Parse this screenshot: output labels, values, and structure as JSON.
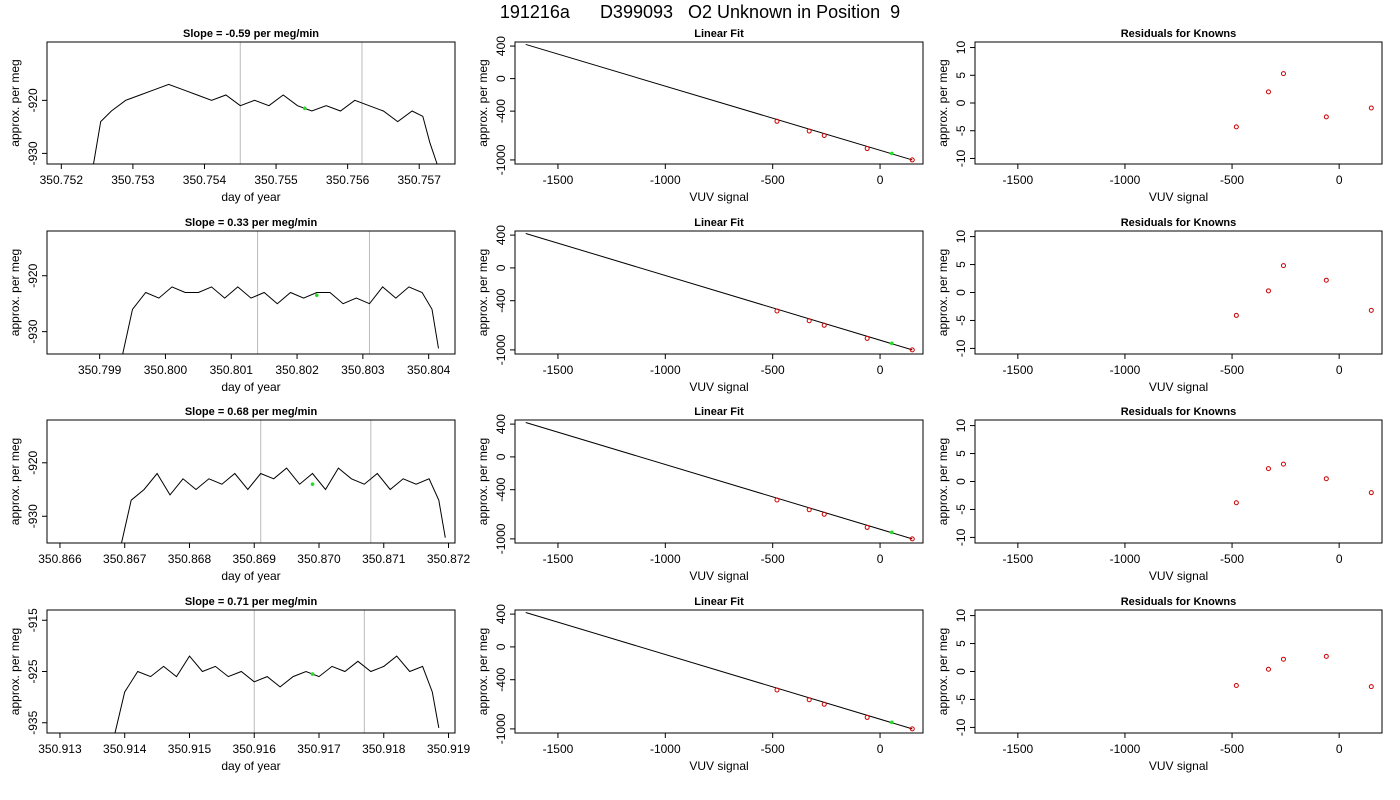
{
  "title": {
    "run": "191216a",
    "sample": "D399093",
    "description": "O2 Unknown in Position  9"
  },
  "colors": {
    "trace": "#000000",
    "knowns": "#cc0000",
    "unknown": "#22dd22",
    "window_lines": "#bbbbbb"
  },
  "chart_data": [
    {
      "type": "line",
      "row": 1,
      "kind": "time-series",
      "title": "Slope =  -0.59  per meg/min",
      "xlabel": "day of year",
      "ylabel": "approx. per meg",
      "xlim": [
        350.7518,
        350.7575
      ],
      "ylim": [
        -932,
        -909
      ],
      "xticks": [
        350.752,
        350.753,
        350.754,
        350.755,
        350.756,
        350.757
      ],
      "xtick_labels": [
        "350.752",
        "350.753",
        "350.754",
        "350.755",
        "350.756",
        "350.757"
      ],
      "yticks": [
        -930,
        -920
      ],
      "ytick_labels": [
        "-930",
        "-920"
      ],
      "window_start": 350.7545,
      "window_end": 350.7562,
      "unknown_point": {
        "x": 350.7554,
        "y": -921.5
      },
      "x": [
        350.75245,
        350.75255,
        350.7527,
        350.7529,
        350.7531,
        350.7533,
        350.7535,
        350.7537,
        350.7539,
        350.7541,
        350.7543,
        350.7545,
        350.7547,
        350.7549,
        350.7551,
        350.7553,
        350.7555,
        350.7557,
        350.7559,
        350.7561,
        350.7563,
        350.7565,
        350.7567,
        350.7569,
        350.75705,
        350.75715,
        350.75725
      ],
      "y": [
        -932,
        -924,
        -922,
        -920,
        -919,
        -918,
        -917,
        -918,
        -919,
        -920,
        -919,
        -921,
        -920,
        -921,
        -919,
        -921,
        -922,
        -921,
        -922,
        -920,
        -921,
        -922,
        -924,
        -922,
        -923,
        -928,
        -932
      ]
    },
    {
      "type": "scatter",
      "row": 1,
      "kind": "linear-fit",
      "title": "Linear Fit",
      "xlabel": "VUV signal",
      "ylabel": "approx. per meg",
      "xlim": [
        -1700,
        200
      ],
      "ylim": [
        -1050,
        450
      ],
      "xticks": [
        -1500,
        -1000,
        -500,
        0
      ],
      "xtick_labels": [
        "-1500",
        "-1000",
        "-500",
        "0"
      ],
      "yticks": [
        400,
        0,
        -400,
        -1000
      ],
      "ytick_labels": [
        "400",
        "0",
        "-400",
        "-1000"
      ],
      "fit_line": {
        "x": [
          -1650,
          150
        ],
        "y": [
          420,
          -1000
        ]
      },
      "knowns": {
        "x": [
          -480,
          -330,
          -260,
          -60,
          150
        ],
        "y": [
          -525,
          -645,
          -700,
          -860,
          -1000
        ]
      },
      "unknown": {
        "x": 55,
        "y": -920
      }
    },
    {
      "type": "scatter",
      "row": 1,
      "kind": "residuals",
      "title": "Residuals for Knowns",
      "xlabel": "VUV signal",
      "ylabel": "approx. per meg",
      "xlim": [
        -1700,
        200
      ],
      "ylim": [
        -11,
        11
      ],
      "xticks": [
        -1500,
        -1000,
        -500,
        0
      ],
      "xtick_labels": [
        "-1500",
        "-1000",
        "-500",
        "0"
      ],
      "yticks": [
        10,
        5,
        0,
        -5,
        -10
      ],
      "ytick_labels": [
        "10",
        "5",
        "0",
        "-5",
        "-10"
      ],
      "knowns": {
        "x": [
          -480,
          -330,
          -260,
          -60,
          150
        ],
        "y": [
          -4.3,
          2.0,
          5.3,
          -2.5,
          -0.9
        ]
      }
    },
    {
      "type": "line",
      "row": 2,
      "kind": "time-series",
      "title": "Slope =  0.33  per meg/min",
      "xlabel": "day of year",
      "ylabel": "approx. per meg",
      "xlim": [
        350.7982,
        350.8044
      ],
      "ylim": [
        -934,
        -912
      ],
      "xticks": [
        350.799,
        350.8,
        350.801,
        350.802,
        350.803,
        350.804
      ],
      "xtick_labels": [
        "350.799",
        "350.800",
        "350.801",
        "350.802",
        "350.803",
        "350.804"
      ],
      "yticks": [
        -930,
        -920
      ],
      "ytick_labels": [
        "-930",
        "-920"
      ],
      "window_start": 350.8014,
      "window_end": 350.8031,
      "unknown_point": {
        "x": 350.8023,
        "y": -923.5
      },
      "x": [
        350.79935,
        350.7995,
        350.7997,
        350.7999,
        350.8001,
        350.8003,
        350.8005,
        350.8007,
        350.8009,
        350.8011,
        350.8013,
        350.8015,
        350.8017,
        350.8019,
        350.8021,
        350.8023,
        350.8025,
        350.8027,
        350.8029,
        350.8031,
        350.8033,
        350.8035,
        350.8037,
        350.8039,
        350.80405,
        350.80415
      ],
      "y": [
        -934,
        -926,
        -923,
        -924,
        -922,
        -923,
        -923,
        -922,
        -924,
        -922,
        -924,
        -923,
        -925,
        -923,
        -924,
        -923,
        -923,
        -925,
        -924,
        -925,
        -922,
        -924,
        -922,
        -923,
        -926,
        -933
      ]
    },
    {
      "type": "scatter",
      "row": 2,
      "kind": "linear-fit",
      "title": "Linear Fit",
      "xlabel": "VUV signal",
      "ylabel": "approx. per meg",
      "xlim": [
        -1700,
        200
      ],
      "ylim": [
        -1050,
        450
      ],
      "xticks": [
        -1500,
        -1000,
        -500,
        0
      ],
      "xtick_labels": [
        "-1500",
        "-1000",
        "-500",
        "0"
      ],
      "yticks": [
        400,
        0,
        -400,
        -1000
      ],
      "ytick_labels": [
        "400",
        "0",
        "-400",
        "-1000"
      ],
      "fit_line": {
        "x": [
          -1650,
          150
        ],
        "y": [
          420,
          -1000
        ]
      },
      "knowns": {
        "x": [
          -480,
          -330,
          -260,
          -60,
          150
        ],
        "y": [
          -525,
          -645,
          -700,
          -860,
          -1000
        ]
      },
      "unknown": {
        "x": 55,
        "y": -920
      }
    },
    {
      "type": "scatter",
      "row": 2,
      "kind": "residuals",
      "title": "Residuals for Knowns",
      "xlabel": "VUV signal",
      "ylabel": "approx. per meg",
      "xlim": [
        -1700,
        200
      ],
      "ylim": [
        -11,
        11
      ],
      "xticks": [
        -1500,
        -1000,
        -500,
        0
      ],
      "xtick_labels": [
        "-1500",
        "-1000",
        "-500",
        "0"
      ],
      "yticks": [
        10,
        5,
        0,
        -5,
        -10
      ],
      "ytick_labels": [
        "10",
        "5",
        "0",
        "-5",
        "-10"
      ],
      "knowns": {
        "x": [
          -480,
          -330,
          -260,
          -60,
          150
        ],
        "y": [
          -4.1,
          0.3,
          4.8,
          2.2,
          -3.2
        ]
      }
    },
    {
      "type": "line",
      "row": 3,
      "kind": "time-series",
      "title": "Slope =  0.68  per meg/min",
      "xlabel": "day of year",
      "ylabel": "approx. per meg",
      "xlim": [
        350.8658,
        350.8721
      ],
      "ylim": [
        -935,
        -912
      ],
      "xticks": [
        350.866,
        350.867,
        350.868,
        350.869,
        350.87,
        350.871,
        350.872
      ],
      "xtick_labels": [
        "350.866",
        "350.867",
        "350.868",
        "350.869",
        "350.870",
        "350.871",
        "350.872"
      ],
      "yticks": [
        -930,
        -920
      ],
      "ytick_labels": [
        "-930",
        "-920"
      ],
      "window_start": 350.8691,
      "window_end": 350.8708,
      "unknown_point": {
        "x": 350.8699,
        "y": -924
      },
      "x": [
        350.86695,
        350.8671,
        350.8673,
        350.8675,
        350.8677,
        350.8679,
        350.8681,
        350.8683,
        350.8685,
        350.8687,
        350.8689,
        350.8691,
        350.8693,
        350.8695,
        350.8697,
        350.8699,
        350.8701,
        350.8703,
        350.8705,
        350.8707,
        350.8709,
        350.8711,
        350.8713,
        350.8715,
        350.8717,
        350.87185,
        350.87195
      ],
      "y": [
        -935,
        -927,
        -925,
        -922,
        -926,
        -923,
        -925,
        -923,
        -924,
        -922,
        -925,
        -922,
        -923,
        -921,
        -924,
        -922,
        -925,
        -921,
        -923,
        -924,
        -922,
        -925,
        -923,
        -924,
        -923,
        -927,
        -934
      ]
    },
    {
      "type": "scatter",
      "row": 3,
      "kind": "linear-fit",
      "title": "Linear Fit",
      "xlabel": "VUV signal",
      "ylabel": "approx. per meg",
      "xlim": [
        -1700,
        200
      ],
      "ylim": [
        -1050,
        450
      ],
      "xticks": [
        -1500,
        -1000,
        -500,
        0
      ],
      "xtick_labels": [
        "-1500",
        "-1000",
        "-500",
        "0"
      ],
      "yticks": [
        400,
        0,
        -400,
        -1000
      ],
      "ytick_labels": [
        "400",
        "0",
        "-400",
        "-1000"
      ],
      "fit_line": {
        "x": [
          -1650,
          150
        ],
        "y": [
          420,
          -1000
        ]
      },
      "knowns": {
        "x": [
          -480,
          -330,
          -260,
          -60,
          150
        ],
        "y": [
          -525,
          -645,
          -700,
          -860,
          -1000
        ]
      },
      "unknown": {
        "x": 55,
        "y": -920
      }
    },
    {
      "type": "scatter",
      "row": 3,
      "kind": "residuals",
      "title": "Residuals for Knowns",
      "xlabel": "VUV signal",
      "ylabel": "approx. per meg",
      "xlim": [
        -1700,
        200
      ],
      "ylim": [
        -11,
        11
      ],
      "xticks": [
        -1500,
        -1000,
        -500,
        0
      ],
      "xtick_labels": [
        "-1500",
        "-1000",
        "-500",
        "0"
      ],
      "yticks": [
        10,
        5,
        0,
        -5,
        -10
      ],
      "ytick_labels": [
        "10",
        "5",
        "0",
        "-5",
        "-10"
      ],
      "knowns": {
        "x": [
          -480,
          -330,
          -260,
          -60,
          150
        ],
        "y": [
          -3.8,
          2.3,
          3.1,
          0.5,
          -2.0
        ]
      }
    },
    {
      "type": "line",
      "row": 4,
      "kind": "time-series",
      "title": "Slope =  0.71  per meg/min",
      "xlabel": "day of year",
      "ylabel": "approx. per meg",
      "xlim": [
        350.9128,
        350.9191
      ],
      "ylim": [
        -937,
        -913
      ],
      "xticks": [
        350.913,
        350.914,
        350.915,
        350.916,
        350.917,
        350.918,
        350.919
      ],
      "xtick_labels": [
        "350.913",
        "350.914",
        "350.915",
        "350.916",
        "350.917",
        "350.918",
        "350.919"
      ],
      "yticks": [
        -935,
        -925,
        -915
      ],
      "ytick_labels": [
        "-935",
        "-925",
        "-915"
      ],
      "window_start": 350.916,
      "window_end": 350.9177,
      "unknown_point": {
        "x": 350.9169,
        "y": -925.5
      },
      "x": [
        350.91385,
        350.914,
        350.9142,
        350.9144,
        350.9146,
        350.9148,
        350.915,
        350.9152,
        350.9154,
        350.9156,
        350.9158,
        350.916,
        350.9162,
        350.9164,
        350.9166,
        350.9168,
        350.917,
        350.9172,
        350.9174,
        350.9176,
        350.9178,
        350.918,
        350.9182,
        350.9184,
        350.9186,
        350.91875,
        350.91885
      ],
      "y": [
        -937,
        -929,
        -925,
        -926,
        -924,
        -926,
        -922,
        -925,
        -924,
        -926,
        -925,
        -927,
        -926,
        -928,
        -926,
        -925,
        -926,
        -924,
        -925,
        -923,
        -925,
        -924,
        -922,
        -925,
        -924,
        -929,
        -936
      ]
    },
    {
      "type": "scatter",
      "row": 4,
      "kind": "linear-fit",
      "title": "Linear Fit",
      "xlabel": "VUV signal",
      "ylabel": "approx. per meg",
      "xlim": [
        -1700,
        200
      ],
      "ylim": [
        -1050,
        450
      ],
      "xticks": [
        -1500,
        -1000,
        -500,
        0
      ],
      "xtick_labels": [
        "-1500",
        "-1000",
        "-500",
        "0"
      ],
      "yticks": [
        400,
        0,
        -400,
        -1000
      ],
      "ytick_labels": [
        "400",
        "0",
        "-400",
        "-1000"
      ],
      "fit_line": {
        "x": [
          -1650,
          150
        ],
        "y": [
          420,
          -1000
        ]
      },
      "knowns": {
        "x": [
          -480,
          -330,
          -260,
          -60,
          150
        ],
        "y": [
          -525,
          -645,
          -700,
          -860,
          -1000
        ]
      },
      "unknown": {
        "x": 55,
        "y": -920
      }
    },
    {
      "type": "scatter",
      "row": 4,
      "kind": "residuals",
      "title": "Residuals for Knowns",
      "xlabel": "VUV signal",
      "ylabel": "approx. per meg",
      "xlim": [
        -1700,
        200
      ],
      "ylim": [
        -11,
        11
      ],
      "xticks": [
        -1500,
        -1000,
        -500,
        0
      ],
      "xtick_labels": [
        "-1500",
        "-1000",
        "-500",
        "0"
      ],
      "yticks": [
        10,
        5,
        0,
        -5,
        -10
      ],
      "ytick_labels": [
        "10",
        "5",
        "0",
        "-5",
        "-10"
      ],
      "knowns": {
        "x": [
          -480,
          -330,
          -260,
          -60,
          150
        ],
        "y": [
          -2.5,
          0.4,
          2.2,
          2.7,
          -2.7
        ]
      }
    }
  ]
}
